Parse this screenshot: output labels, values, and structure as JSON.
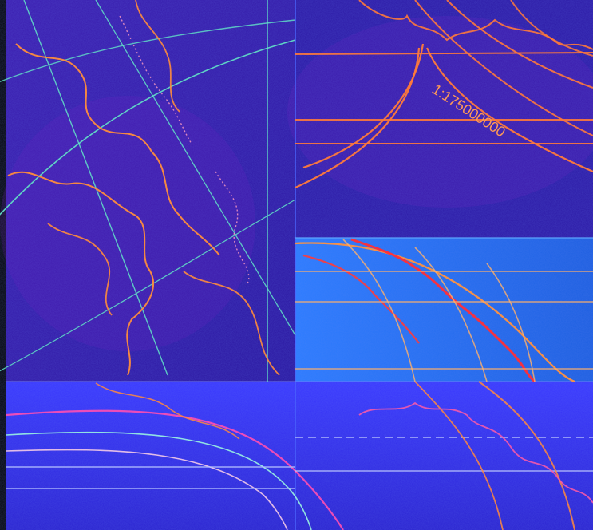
{
  "map": {
    "scale_label": "1:175000000",
    "palette": {
      "deep": "#2a1a8f",
      "violet": "#4a1fb0",
      "magenta": "#8a2ad0",
      "blue": "#1f55d8",
      "cyan": "#25b8ff",
      "lightblue": "#2d6fff",
      "teal_line": "#6ee3c4",
      "orange_line": "#ff8a3d",
      "red_line": "#ff2a3a",
      "pink_line": "#ff4fb0",
      "left_strip": "#0a0b10"
    }
  }
}
